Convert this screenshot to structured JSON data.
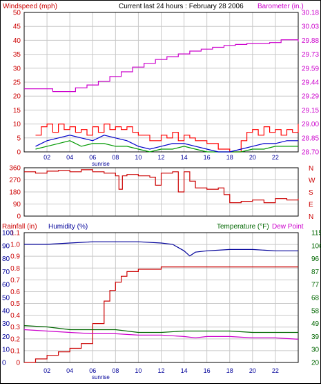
{
  "header": {
    "left_label": "Windspeed (mph)",
    "center_label": "Current last 24 hours : February 28 2006",
    "right_label": "Barometer (in.)"
  },
  "colors": {
    "wind": "#ff0000",
    "gust_blue": "#0000cc",
    "gust_green": "#009900",
    "barometer": "#cc00cc",
    "direction": "#cc0000",
    "rain": "#cc0000",
    "humidity": "#000099",
    "temperature": "#006600",
    "dewpoint": "#cc00cc",
    "grid": "#c8c8c8",
    "axis_red": "#cc0000",
    "axis_blue": "#000099",
    "axis_green": "#006600",
    "axis_magenta": "#cc00cc"
  },
  "chart_data": [
    {
      "type": "line",
      "title": "Current last 24 hours : February 28 2006",
      "ylabel": "Windspeed (mph)",
      "y2label": "Barometer (in.)",
      "x_ticks": [
        "02",
        "04",
        "06",
        "08",
        "10",
        "12",
        "14",
        "16",
        "18",
        "20",
        "22"
      ],
      "x_annotation": "sunrise",
      "ylim": [
        0,
        50
      ],
      "y_ticks": [
        "0",
        "5",
        "10",
        "15",
        "20",
        "25",
        "30",
        "35",
        "40",
        "45",
        "50"
      ],
      "y2lim": [
        28.7,
        30.18
      ],
      "y2_ticks": [
        "28.70",
        "28.85",
        "29.00",
        "29.15",
        "29.29",
        "29.44",
        "29.59",
        "29.73",
        "29.88",
        "30.03",
        "30.18"
      ],
      "series": [
        {
          "name": "Barometer (in.)",
          "axis": "right",
          "x": [
            0,
            2.5,
            3.5,
            4.5,
            5.5,
            6.5,
            7.5,
            8.5,
            9.5,
            10.5,
            11.5,
            12.5,
            13.5,
            14.5,
            15.5,
            16.5,
            17.5,
            18.5,
            19.5,
            20.5,
            21.5,
            22.5,
            23,
            24
          ],
          "values": [
            29.37,
            29.34,
            29.34,
            29.38,
            29.41,
            29.45,
            29.5,
            29.55,
            29.6,
            29.64,
            29.68,
            29.71,
            29.74,
            29.77,
            29.79,
            29.81,
            29.83,
            29.84,
            29.85,
            29.85,
            29.86,
            29.89,
            29.89,
            29.87
          ]
        },
        {
          "name": "Wind average",
          "axis": "left",
          "x": [
            1,
            2,
            3,
            4,
            5,
            6,
            7,
            8,
            9,
            10,
            11,
            12,
            13,
            14,
            15,
            16,
            17,
            18,
            19,
            20,
            21,
            22,
            23,
            24
          ],
          "values": [
            2,
            4,
            5,
            6,
            5,
            4,
            6,
            5,
            4,
            2,
            1,
            2,
            3,
            3,
            2,
            1,
            0,
            0,
            1,
            2,
            3,
            3,
            4,
            4
          ]
        },
        {
          "name": "Wind low",
          "axis": "left",
          "x": [
            1,
            2,
            3,
            4,
            5,
            6,
            7,
            8,
            9,
            10,
            11,
            12,
            13,
            14,
            15,
            16,
            17,
            18,
            19,
            20,
            21,
            22,
            23,
            24
          ],
          "values": [
            1,
            2,
            3,
            4,
            2,
            3,
            3,
            2,
            2,
            1,
            0,
            1,
            1,
            2,
            1,
            0,
            0,
            0,
            0,
            1,
            1,
            2,
            2,
            2
          ]
        },
        {
          "name": "Wind gust",
          "axis": "left",
          "x": [
            1,
            1.5,
            2,
            2.5,
            3,
            3.5,
            4,
            4.5,
            5,
            5.5,
            6,
            6.5,
            7,
            7.5,
            8,
            8.5,
            9,
            9.5,
            10,
            11,
            12,
            12.5,
            13,
            13.5,
            14,
            14.5,
            15,
            16,
            17,
            18,
            19,
            19.5,
            20,
            20.5,
            21,
            21.5,
            22,
            22.5,
            23,
            23.5,
            24
          ],
          "values": [
            6,
            9,
            10,
            7,
            10,
            8,
            9,
            7,
            8,
            6,
            9,
            7,
            10,
            8,
            9,
            8,
            9,
            7,
            6,
            4,
            6,
            5,
            7,
            4,
            6,
            5,
            4,
            3,
            1,
            0,
            4,
            7,
            8,
            6,
            9,
            7,
            8,
            6,
            8,
            7,
            10
          ]
        }
      ]
    },
    {
      "type": "line",
      "ylabel": "Wind direction",
      "ylim": [
        0,
        360
      ],
      "y_ticks": [
        "0",
        "90",
        "180",
        "270",
        "360"
      ],
      "right_labels": [
        "N",
        "W",
        "S",
        "E",
        "N"
      ],
      "series": [
        {
          "name": "Wind direction",
          "x": [
            0,
            1,
            2,
            3,
            4,
            5,
            6,
            7,
            8,
            8.3,
            8.6,
            9,
            10,
            11,
            11.5,
            12,
            13,
            13.5,
            14,
            14.5,
            15,
            16,
            17,
            17.5,
            18,
            19,
            20,
            21,
            22,
            23,
            24
          ],
          "values": [
            330,
            320,
            335,
            340,
            330,
            345,
            330,
            320,
            300,
            200,
            300,
            310,
            300,
            290,
            230,
            320,
            330,
            180,
            330,
            260,
            210,
            200,
            210,
            160,
            100,
            110,
            120,
            100,
            130,
            120,
            130
          ]
        }
      ]
    },
    {
      "type": "line",
      "ylabel": "Rainfall (in)",
      "y2label": "Humidity (%)",
      "y3label": "Temperature (°F)",
      "y4label": "Dew Point",
      "x_ticks": [
        "02",
        "04",
        "06",
        "08",
        "10",
        "12",
        "14",
        "16",
        "18",
        "20",
        "22"
      ],
      "x_annotation": "sunrise",
      "rain_ticks": [
        "0",
        "0.1",
        "0.2",
        "0.3",
        "0.4",
        "0.5",
        "0.6",
        "0.7",
        "0.8",
        "0.9",
        "1.0",
        "1.1"
      ],
      "humidity_ticks": [
        "0",
        "10",
        "20",
        "30",
        "40",
        "50",
        "60",
        "70",
        "80",
        "90",
        "100"
      ],
      "temperature_ticks": [
        "20",
        "30",
        "39",
        "49",
        "58",
        "68",
        "77",
        "87",
        "96",
        "106",
        "115"
      ],
      "rainlim": [
        0,
        1.1
      ],
      "humiditylim": [
        0,
        100
      ],
      "templim": [
        20,
        115
      ],
      "series": [
        {
          "name": "Rainfall (in)",
          "x": [
            0,
            1,
            2,
            3,
            4,
            5,
            6,
            7,
            7.5,
            8,
            8.5,
            9,
            9.5,
            10,
            11,
            12,
            13,
            14,
            15,
            16,
            17,
            18,
            19,
            20,
            21,
            22,
            23,
            24
          ],
          "values": [
            0,
            0.03,
            0.06,
            0.09,
            0.12,
            0.16,
            0.33,
            0.52,
            0.61,
            0.68,
            0.73,
            0.77,
            0.77,
            0.79,
            0.79,
            0.81,
            0.81,
            0.81,
            0.81,
            0.81,
            0.81,
            0.81,
            0.81,
            0.81,
            0.81,
            0.81,
            0.81,
            0.81
          ]
        },
        {
          "name": "Humidity (%)",
          "x": [
            0,
            2,
            4,
            6,
            8,
            10,
            12,
            13,
            14,
            14.5,
            15,
            16,
            18,
            20,
            22,
            24
          ],
          "values": [
            91,
            91,
            92,
            93,
            93,
            93,
            92,
            91,
            86,
            82,
            85,
            86,
            87,
            87,
            86,
            86
          ]
        },
        {
          "name": "Temperature (°F)",
          "x": [
            0,
            2,
            4,
            6,
            8,
            10,
            12,
            14,
            16,
            18,
            20,
            22,
            24
          ],
          "values": [
            47,
            46,
            44,
            44,
            44,
            42,
            42,
            43,
            43,
            43,
            42,
            42,
            42
          ]
        },
        {
          "name": "Dew Point",
          "x": [
            0,
            2,
            4,
            6,
            8,
            10,
            12,
            14,
            15,
            16,
            18,
            20,
            22,
            24
          ],
          "values": [
            44,
            43,
            42,
            41,
            41,
            40,
            40,
            39,
            38,
            39,
            39,
            38,
            38,
            37
          ]
        }
      ]
    }
  ]
}
